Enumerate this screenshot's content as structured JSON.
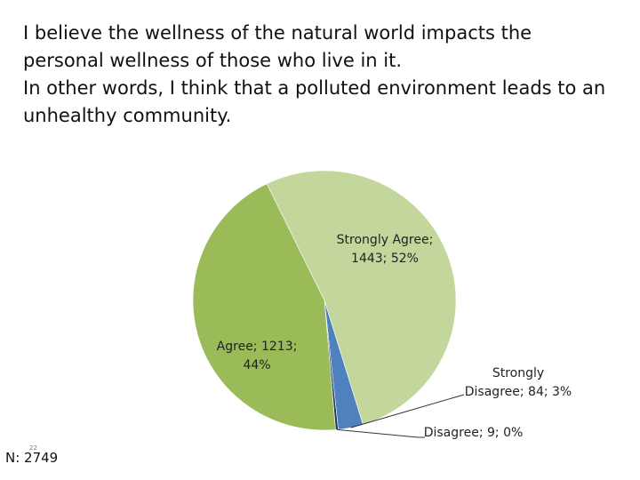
{
  "title": {
    "lines": [
      "I believe the wellness of the natural world impacts the",
      "personal wellness of those who live in it.",
      "In other words, I think that a polluted environment leads to an",
      "unhealthy community."
    ]
  },
  "chart_data": {
    "type": "pie",
    "title": "I believe the wellness of the natural world impacts the personal wellness of those who live in it. In other words, I think that a polluted environment leads to an unhealthy community.",
    "slices": [
      {
        "category": "Strongly Agree",
        "value": 1443,
        "percent": 52,
        "color": "#c3d69b"
      },
      {
        "category": "Strongly Disagree",
        "value": 84,
        "percent": 3,
        "color": "#4f81bd"
      },
      {
        "category": "Disagree",
        "value": 9,
        "percent": 0,
        "color": "#1f3864"
      },
      {
        "category": "Agree",
        "value": 1213,
        "percent": 44,
        "color": "#9bbb59"
      }
    ],
    "data_labels": [
      "Strongly Agree;",
      "1443; 52%",
      "Strongly",
      "Disagree; 84; 3%",
      "Disagree; 9; 0%",
      "Agree; 1213;",
      "44%"
    ],
    "total_label": "N: 2749"
  },
  "page_number": "22"
}
